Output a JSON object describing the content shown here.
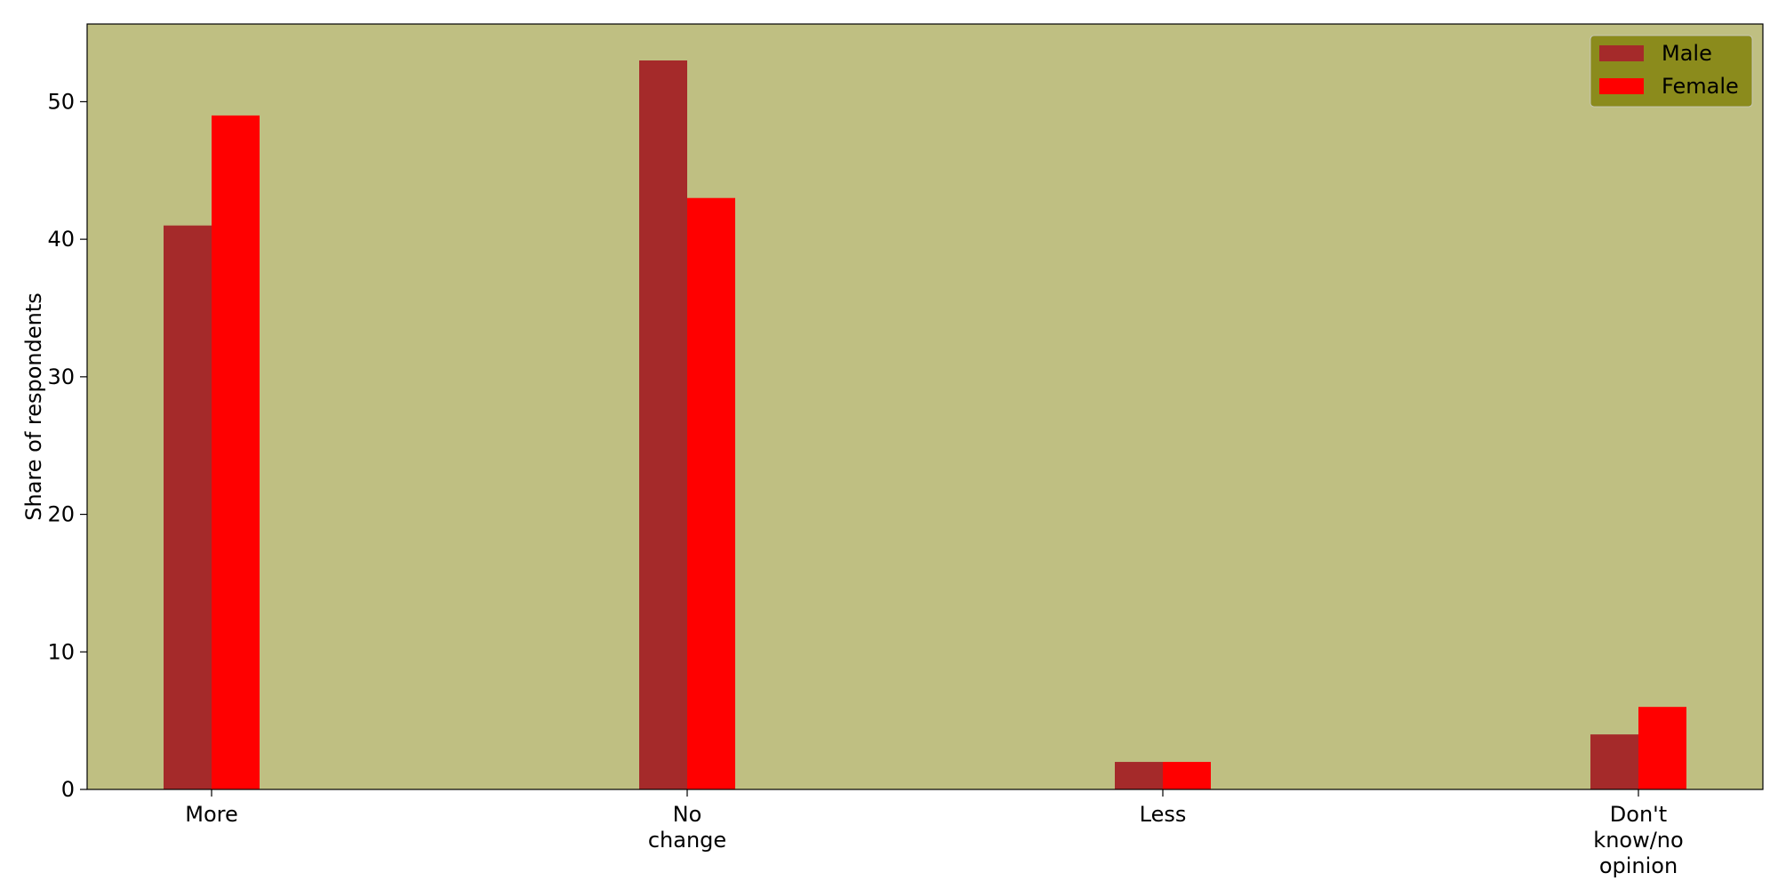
{
  "chart_data": {
    "type": "bar",
    "title": "",
    "xlabel": "",
    "ylabel": "Share of respondents",
    "categories": [
      "More",
      "No change",
      "Less",
      "Don't know/no opinion"
    ],
    "category_tick_lines": [
      [
        "More"
      ],
      [
        "No",
        "change"
      ],
      [
        "Less"
      ],
      [
        "Don't",
        "know/no",
        "opinion"
      ]
    ],
    "series": [
      {
        "name": "Male",
        "values": [
          41,
          53,
          2,
          4
        ],
        "color": "#a52a2a"
      },
      {
        "name": "Female",
        "values": [
          49,
          43,
          2,
          6
        ],
        "color": "#ff0000"
      }
    ],
    "ylim": [
      0,
      55.65
    ],
    "yticks": [
      0,
      10,
      20,
      30,
      40,
      50
    ],
    "grid": false,
    "legend_position": "top-right",
    "colors": {
      "plot_background": "#bfbf82",
      "legend_background": "#8b8b1c",
      "axis": "#000000"
    }
  }
}
